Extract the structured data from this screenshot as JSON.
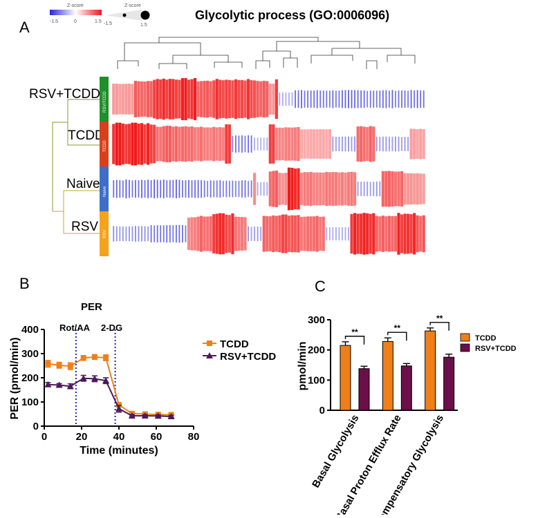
{
  "colors": {
    "tcdd": "#f07f1a",
    "rsv_tcdd": "#4b1a5c",
    "bar_rsv_tcdd": "#6b0f4a",
    "hm_high": "#f01818",
    "hm_low": "#2727d8",
    "grp_rsv_tcdd": "#1f8f2a",
    "grp_tcdd": "#d8401a",
    "grp_naive": "#3d6fc9",
    "grp_rsv": "#f5a21c",
    "dend_top": "#8a9a2a",
    "dend_bottom": "#c9a33a"
  },
  "panel_a": {
    "letter": "A",
    "title": "Glycolytic process (GO:0006096)",
    "legend": {
      "label_left": "Z-score",
      "label_right": "Z-score",
      "ticks_left": [
        "-1.5",
        "0",
        "1.5"
      ],
      "ticks_right": [
        "-1.5",
        "1.5"
      ]
    },
    "rows": [
      {
        "label": "RSV+TCDD",
        "sidebar": "RSV/TCDD"
      },
      {
        "label": "TCDD",
        "sidebar": "TCDD"
      },
      {
        "label": "Naive",
        "sidebar": "Naive"
      },
      {
        "label": "RSV",
        "sidebar": "RSV"
      }
    ]
  },
  "chart_data": [
    {
      "type": "line",
      "panel": "B",
      "title": "PER",
      "xlabel": "Time (minutes)",
      "ylabel": "PER (pmol/min)",
      "xlim": [
        0,
        80
      ],
      "ylim": [
        0,
        400
      ],
      "xticks": [
        "0",
        "20",
        "40",
        "60",
        "80"
      ],
      "yticks": [
        "0",
        "100",
        "200",
        "300",
        "400"
      ],
      "annotations": [
        {
          "text": "Rot/AA",
          "x": 17
        },
        {
          "text": "2-DG",
          "x": 38
        }
      ],
      "legend_position": "right",
      "series": [
        {
          "name": "TCDD",
          "marker": "square",
          "x": [
            2,
            8,
            14,
            21,
            27,
            33,
            40,
            47,
            54,
            61,
            68
          ],
          "y": [
            258,
            252,
            248,
            282,
            286,
            283,
            88,
            52,
            50,
            48,
            47
          ],
          "err": [
            14,
            12,
            14,
            10,
            10,
            12,
            8,
            5,
            5,
            5,
            5
          ]
        },
        {
          "name": "RSV+TCDD",
          "marker": "triangle",
          "x": [
            2,
            8,
            14,
            21,
            27,
            33,
            40,
            47,
            54,
            61,
            68
          ],
          "y": [
            172,
            170,
            165,
            198,
            196,
            188,
            72,
            43,
            43,
            42,
            40
          ],
          "err": [
            8,
            6,
            10,
            12,
            12,
            12,
            14,
            5,
            5,
            5,
            5
          ]
        }
      ]
    },
    {
      "type": "bar",
      "panel": "C",
      "ylabel": "pmol/min",
      "ylim": [
        0,
        300
      ],
      "yticks": [
        "0",
        "100",
        "200",
        "300"
      ],
      "categories": [
        "Basal Glycolysis",
        "Basal Proton Efflux Rate",
        "Compensatory Glycolysis"
      ],
      "significance": [
        "**",
        "**",
        "**"
      ],
      "legend_position": "right",
      "series": [
        {
          "name": "TCDD",
          "values": [
            215,
            228,
            263
          ],
          "err": [
            12,
            12,
            10
          ]
        },
        {
          "name": "RSV+TCDD",
          "values": [
            138,
            147,
            176
          ],
          "err": [
            8,
            8,
            10
          ]
        }
      ]
    }
  ]
}
